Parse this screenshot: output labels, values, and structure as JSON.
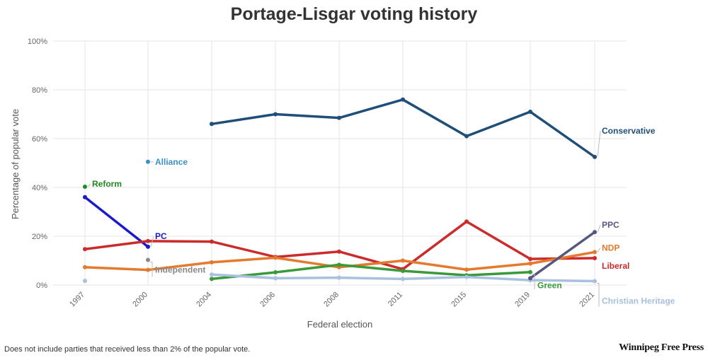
{
  "chart_data": {
    "type": "line",
    "title": "Portage-Lisgar voting history",
    "xlabel": "Federal election",
    "ylabel": "Percentage of popular vote",
    "x": [
      "1997",
      "2000",
      "2004",
      "2006",
      "2008",
      "2011",
      "2015",
      "2019",
      "2021"
    ],
    "ylim": [
      0,
      100
    ],
    "yticks": [
      "0%",
      "20%",
      "40%",
      "60%",
      "80%",
      "100%"
    ],
    "grid": true,
    "series": [
      {
        "name": "Conservative",
        "color": "#1f4e79",
        "values": [
          null,
          null,
          66,
          70,
          68.5,
          76,
          61,
          71,
          52.5
        ]
      },
      {
        "name": "Reform",
        "color": "#1e8a1e",
        "values": [
          40.3,
          null,
          null,
          null,
          null,
          null,
          null,
          null,
          null
        ]
      },
      {
        "name": "Alliance",
        "color": "#3b8fc8",
        "values": [
          null,
          50.5,
          null,
          null,
          null,
          null,
          null,
          null,
          null
        ]
      },
      {
        "name": "PC",
        "color": "#1a1acc",
        "values": [
          36,
          15.7,
          null,
          null,
          null,
          null,
          null,
          null,
          null
        ]
      },
      {
        "name": "Independent",
        "color": "#888888",
        "values": [
          null,
          10.3,
          null,
          null,
          null,
          null,
          null,
          null,
          null
        ]
      },
      {
        "name": "Liberal",
        "color": "#cc2b2b",
        "values": [
          14.7,
          18,
          17.8,
          11.5,
          13.7,
          6.5,
          26,
          10.7,
          11
        ]
      },
      {
        "name": "NDP",
        "color": "#e47a2e",
        "values": [
          7.3,
          6.2,
          9.3,
          11.2,
          7.3,
          10,
          6.3,
          8.8,
          13.5
        ]
      },
      {
        "name": "Green",
        "color": "#3a9a3a",
        "values": [
          null,
          null,
          2.5,
          5.2,
          8.3,
          5.8,
          4,
          5.3,
          null
        ]
      },
      {
        "name": "Christian Heritage",
        "color": "#a8c1de",
        "values": [
          1.7,
          null,
          4.3,
          2.8,
          3,
          2.5,
          3.3,
          2,
          1.6
        ]
      },
      {
        "name": "PPC",
        "color": "#54587f",
        "values": [
          null,
          null,
          null,
          null,
          null,
          null,
          null,
          2.8,
          21.7
        ]
      }
    ]
  },
  "footnote": "Does not include parties that received less than 2% of the popular vote.",
  "brand": "Winnipeg Free Press"
}
